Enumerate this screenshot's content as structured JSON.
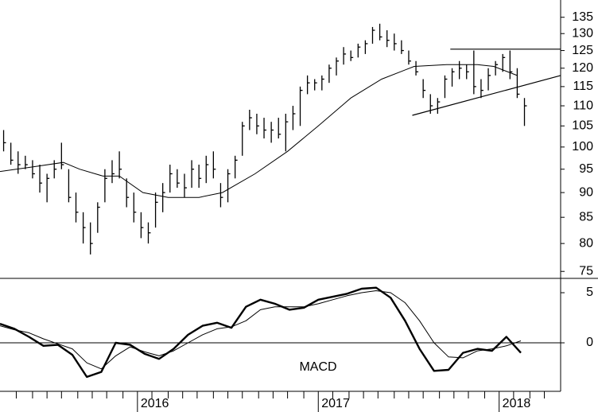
{
  "chart_data": [
    {
      "type": "stock",
      "log_scale": true,
      "color": "#000000",
      "xlim": [
        2015.24,
        2018.34
      ],
      "xticks": [
        2016,
        2017,
        2018
      ],
      "xminorticks": [
        2015.33,
        2015.42,
        2015.5,
        2015.58,
        2015.67,
        2015.75,
        2015.83,
        2015.92,
        2016.08,
        2016.17,
        2016.25,
        2016.33,
        2016.42,
        2016.5,
        2016.58,
        2016.67,
        2016.75,
        2016.83,
        2016.92,
        2017.08,
        2017.17,
        2017.25,
        2017.33,
        2017.42,
        2017.5,
        2017.58,
        2017.67,
        2017.75,
        2017.83,
        2017.92,
        2018.08,
        2018.17,
        2018.25
      ],
      "ylim": [
        73.8,
        140.5
      ],
      "yticks": [
        75,
        80,
        85,
        90,
        95,
        100,
        105,
        110,
        115,
        120,
        125,
        130,
        135
      ],
      "x": [
        2015.26,
        2015.3,
        2015.34,
        2015.38,
        2015.42,
        2015.46,
        2015.5,
        2015.54,
        2015.58,
        2015.62,
        2015.66,
        2015.7,
        2015.74,
        2015.78,
        2015.82,
        2015.86,
        2015.9,
        2015.94,
        2015.98,
        2016.02,
        2016.06,
        2016.1,
        2016.14,
        2016.18,
        2016.22,
        2016.26,
        2016.3,
        2016.34,
        2016.38,
        2016.42,
        2016.46,
        2016.5,
        2016.54,
        2016.58,
        2016.62,
        2016.66,
        2016.7,
        2016.74,
        2016.78,
        2016.82,
        2016.86,
        2016.9,
        2016.94,
        2016.98,
        2017.02,
        2017.06,
        2017.1,
        2017.14,
        2017.18,
        2017.22,
        2017.26,
        2017.3,
        2017.34,
        2017.38,
        2017.42,
        2017.46,
        2017.5,
        2017.54,
        2017.58,
        2017.62,
        2017.66,
        2017.7,
        2017.74,
        2017.78,
        2017.82,
        2017.86,
        2017.9,
        2017.94,
        2017.98,
        2018.02,
        2018.06,
        2018.1,
        2018.14
      ],
      "high": [
        104,
        101,
        99,
        98,
        97,
        96,
        94,
        97,
        101,
        95,
        90,
        86,
        84,
        88,
        95,
        97,
        99,
        93,
        90,
        86,
        84,
        90,
        92,
        96,
        95,
        94,
        97,
        96,
        98,
        99,
        92,
        95,
        98,
        106,
        109,
        108,
        107,
        106,
        107,
        108,
        110,
        115,
        118,
        117,
        118,
        121,
        123,
        126,
        125,
        127,
        128,
        132,
        133,
        131,
        130,
        128,
        125,
        122,
        117,
        113,
        112,
        118,
        120,
        122,
        121,
        125,
        117,
        120,
        122,
        124,
        125,
        120,
        112
      ],
      "low": [
        99,
        96,
        94,
        95,
        93,
        90,
        88,
        93,
        95,
        88,
        84,
        80,
        78,
        82,
        88,
        92,
        93,
        87,
        84,
        81,
        80,
        83,
        86,
        90,
        91,
        89,
        91,
        91,
        92,
        93,
        87,
        88,
        93,
        98,
        104,
        103,
        102,
        101,
        102,
        99,
        104,
        105,
        113,
        114,
        114,
        116,
        118,
        121,
        122,
        123,
        124,
        127,
        128,
        126,
        125,
        124,
        121,
        118,
        112,
        108,
        108,
        112,
        115,
        117,
        117,
        113,
        112,
        114,
        118,
        119,
        117,
        112,
        105
      ],
      "close": [
        101,
        97,
        96,
        96,
        94,
        92,
        93,
        95,
        96,
        89,
        86,
        83,
        80,
        87,
        93,
        94,
        95,
        89,
        86,
        83,
        82,
        88,
        90,
        94,
        92,
        91,
        95,
        93,
        96,
        95,
        89,
        94,
        97,
        105,
        107,
        105,
        104,
        104,
        103,
        106,
        108,
        114,
        116,
        116,
        117,
        120,
        122,
        124,
        123,
        126,
        127,
        131,
        129,
        128,
        127,
        125,
        122,
        119,
        114,
        110,
        111,
        117,
        119,
        120,
        119,
        115,
        114,
        118,
        121,
        123,
        119,
        113,
        110
      ],
      "moving_average": {
        "x": [
          2015.24,
          2015.42,
          2015.59,
          2015.68,
          2015.81,
          2015.9,
          2016.03,
          2016.17,
          2016.34,
          2016.47,
          2016.65,
          2016.83,
          2017.0,
          2017.18,
          2017.35,
          2017.53,
          2017.71,
          2017.88,
          2017.97,
          2018.1
        ],
        "values": [
          94.5,
          95.5,
          96.5,
          95,
          93.5,
          93.5,
          90,
          89,
          89,
          90,
          94,
          99,
          105,
          112,
          117,
          120.5,
          121,
          121,
          120.5,
          118
        ]
      },
      "trendlines": [
        {
          "x": [
            2017.73,
            2018.34
          ],
          "values": [
            125.4,
            125.4
          ]
        },
        {
          "x": [
            2017.52,
            2018.34
          ],
          "values": [
            107.6,
            118
          ]
        }
      ]
    },
    {
      "type": "line",
      "annotation": "MACD",
      "xlim": [
        2015.24,
        2018.34
      ],
      "ylim": [
        -4.84,
        6.43
      ],
      "yticks": [
        0,
        5
      ],
      "x": [
        2015.24,
        2015.32,
        2015.4,
        2015.48,
        2015.56,
        2015.64,
        2015.72,
        2015.8,
        2015.88,
        2015.96,
        2016.04,
        2016.12,
        2016.2,
        2016.28,
        2016.36,
        2016.44,
        2016.52,
        2016.6,
        2016.68,
        2016.76,
        2016.84,
        2016.92,
        2017.0,
        2017.08,
        2017.16,
        2017.24,
        2017.32,
        2017.4,
        2017.48,
        2017.56,
        2017.64,
        2017.72,
        2017.8,
        2017.88,
        2017.96,
        2018.04,
        2018.12
      ],
      "series": [
        {
          "color": "#000000",
          "line_width": 2.4,
          "values": [
            1.9,
            1.4,
            0.6,
            -0.3,
            -0.2,
            -1.2,
            -3.4,
            -2.9,
            0.0,
            -0.2,
            -1.1,
            -1.6,
            -0.6,
            0.8,
            1.7,
            2.0,
            1.5,
            3.6,
            4.3,
            3.9,
            3.3,
            3.5,
            4.3,
            4.6,
            4.9,
            5.4,
            5.5,
            4.5,
            2.2,
            -0.6,
            -2.8,
            -2.7,
            -1.0,
            -0.6,
            -0.8,
            0.6,
            -1.0
          ]
        },
        {
          "color": "#000000",
          "line_width": 1,
          "values": [
            1.7,
            1.3,
            1.0,
            0.4,
            -0.1,
            -0.6,
            -2.0,
            -2.6,
            -1.3,
            -0.4,
            -0.9,
            -1.3,
            -0.8,
            0.0,
            0.8,
            1.4,
            1.6,
            2.2,
            3.3,
            3.6,
            3.6,
            3.6,
            3.9,
            4.3,
            4.7,
            5.0,
            5.2,
            5.0,
            4.0,
            2.2,
            0.0,
            -1.4,
            -1.5,
            -0.8,
            -0.6,
            -0.3,
            0.2
          ]
        }
      ]
    }
  ]
}
